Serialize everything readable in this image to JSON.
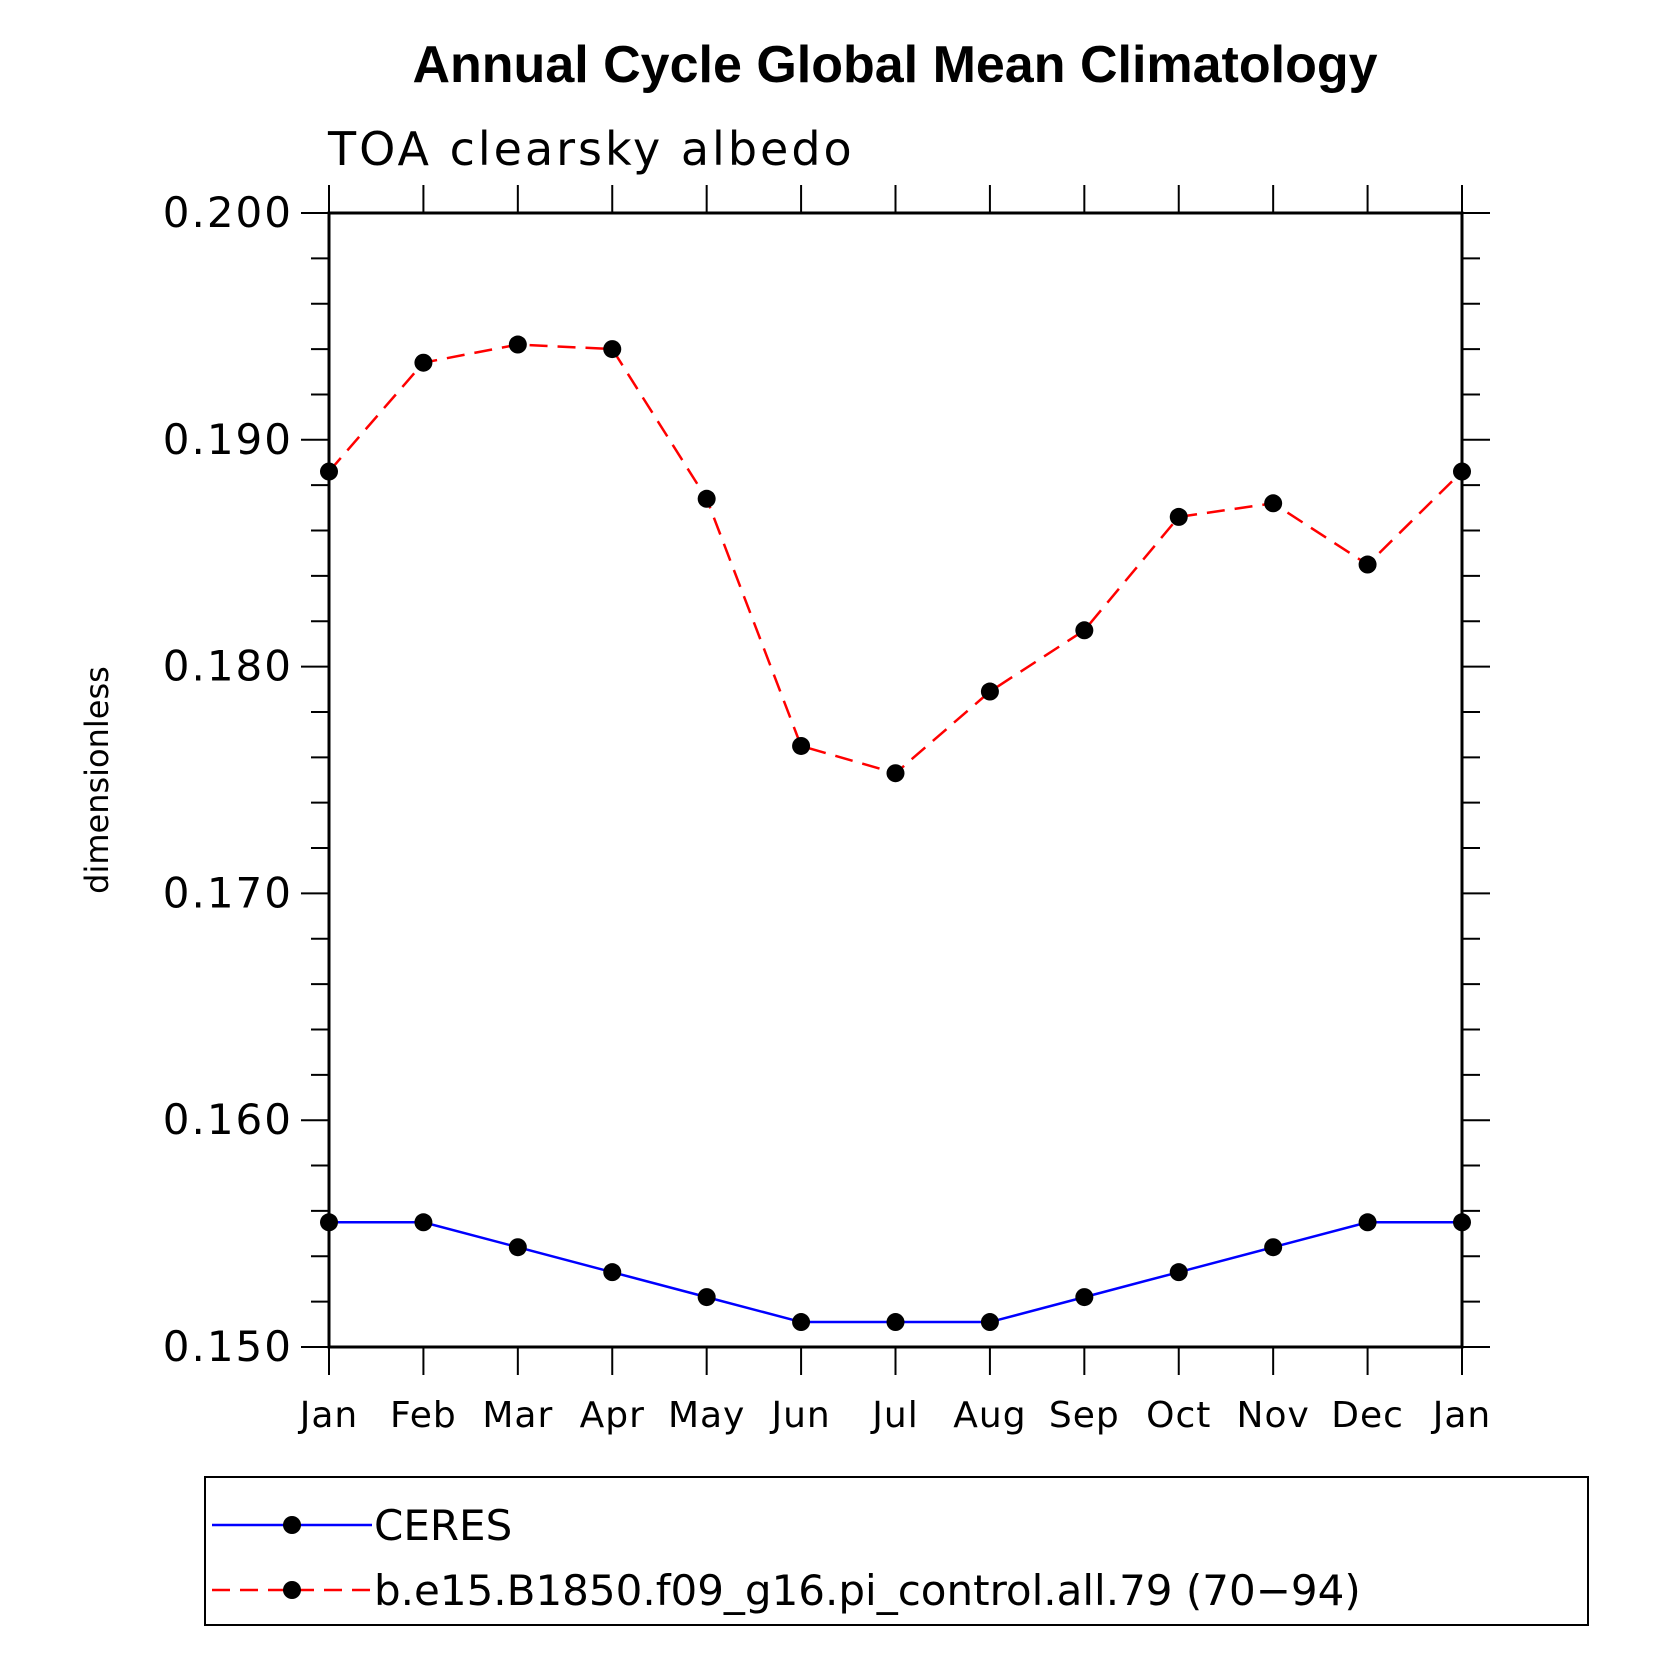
{
  "chart_data": {
    "type": "line",
    "title": "Annual Cycle Global Mean Climatology",
    "subtitle": "TOA clearsky albedo",
    "ylabel": "dimensionless",
    "xlabel": "",
    "categories": [
      "Jan",
      "Feb",
      "Mar",
      "Apr",
      "May",
      "Jun",
      "Jul",
      "Aug",
      "Sep",
      "Oct",
      "Nov",
      "Dec",
      "Jan"
    ],
    "ylim": [
      0.15,
      0.2
    ],
    "yticks": [
      "0.150",
      "0.160",
      "0.170",
      "0.180",
      "0.190",
      "0.200"
    ],
    "legend_position": "bottom",
    "grid": false,
    "series": [
      {
        "name": "CERES",
        "color": "#0000ff",
        "line_style": "solid",
        "marker": "filled-circle",
        "values": [
          0.1555,
          0.1555,
          0.1544,
          0.1533,
          0.1522,
          0.1511,
          0.1511,
          0.1511,
          0.1522,
          0.1533,
          0.1544,
          0.1555,
          0.1555
        ]
      },
      {
        "name": "b.e15.B1850.f09_g16.pi_control.all.79 (70−94)",
        "color": "#ff0000",
        "line_style": "dashed",
        "marker": "filled-circle",
        "values": [
          0.1886,
          0.1934,
          0.1942,
          0.194,
          0.1874,
          0.1765,
          0.1753,
          0.1789,
          0.1816,
          0.1866,
          0.1872,
          0.1845,
          0.1886
        ]
      }
    ]
  }
}
